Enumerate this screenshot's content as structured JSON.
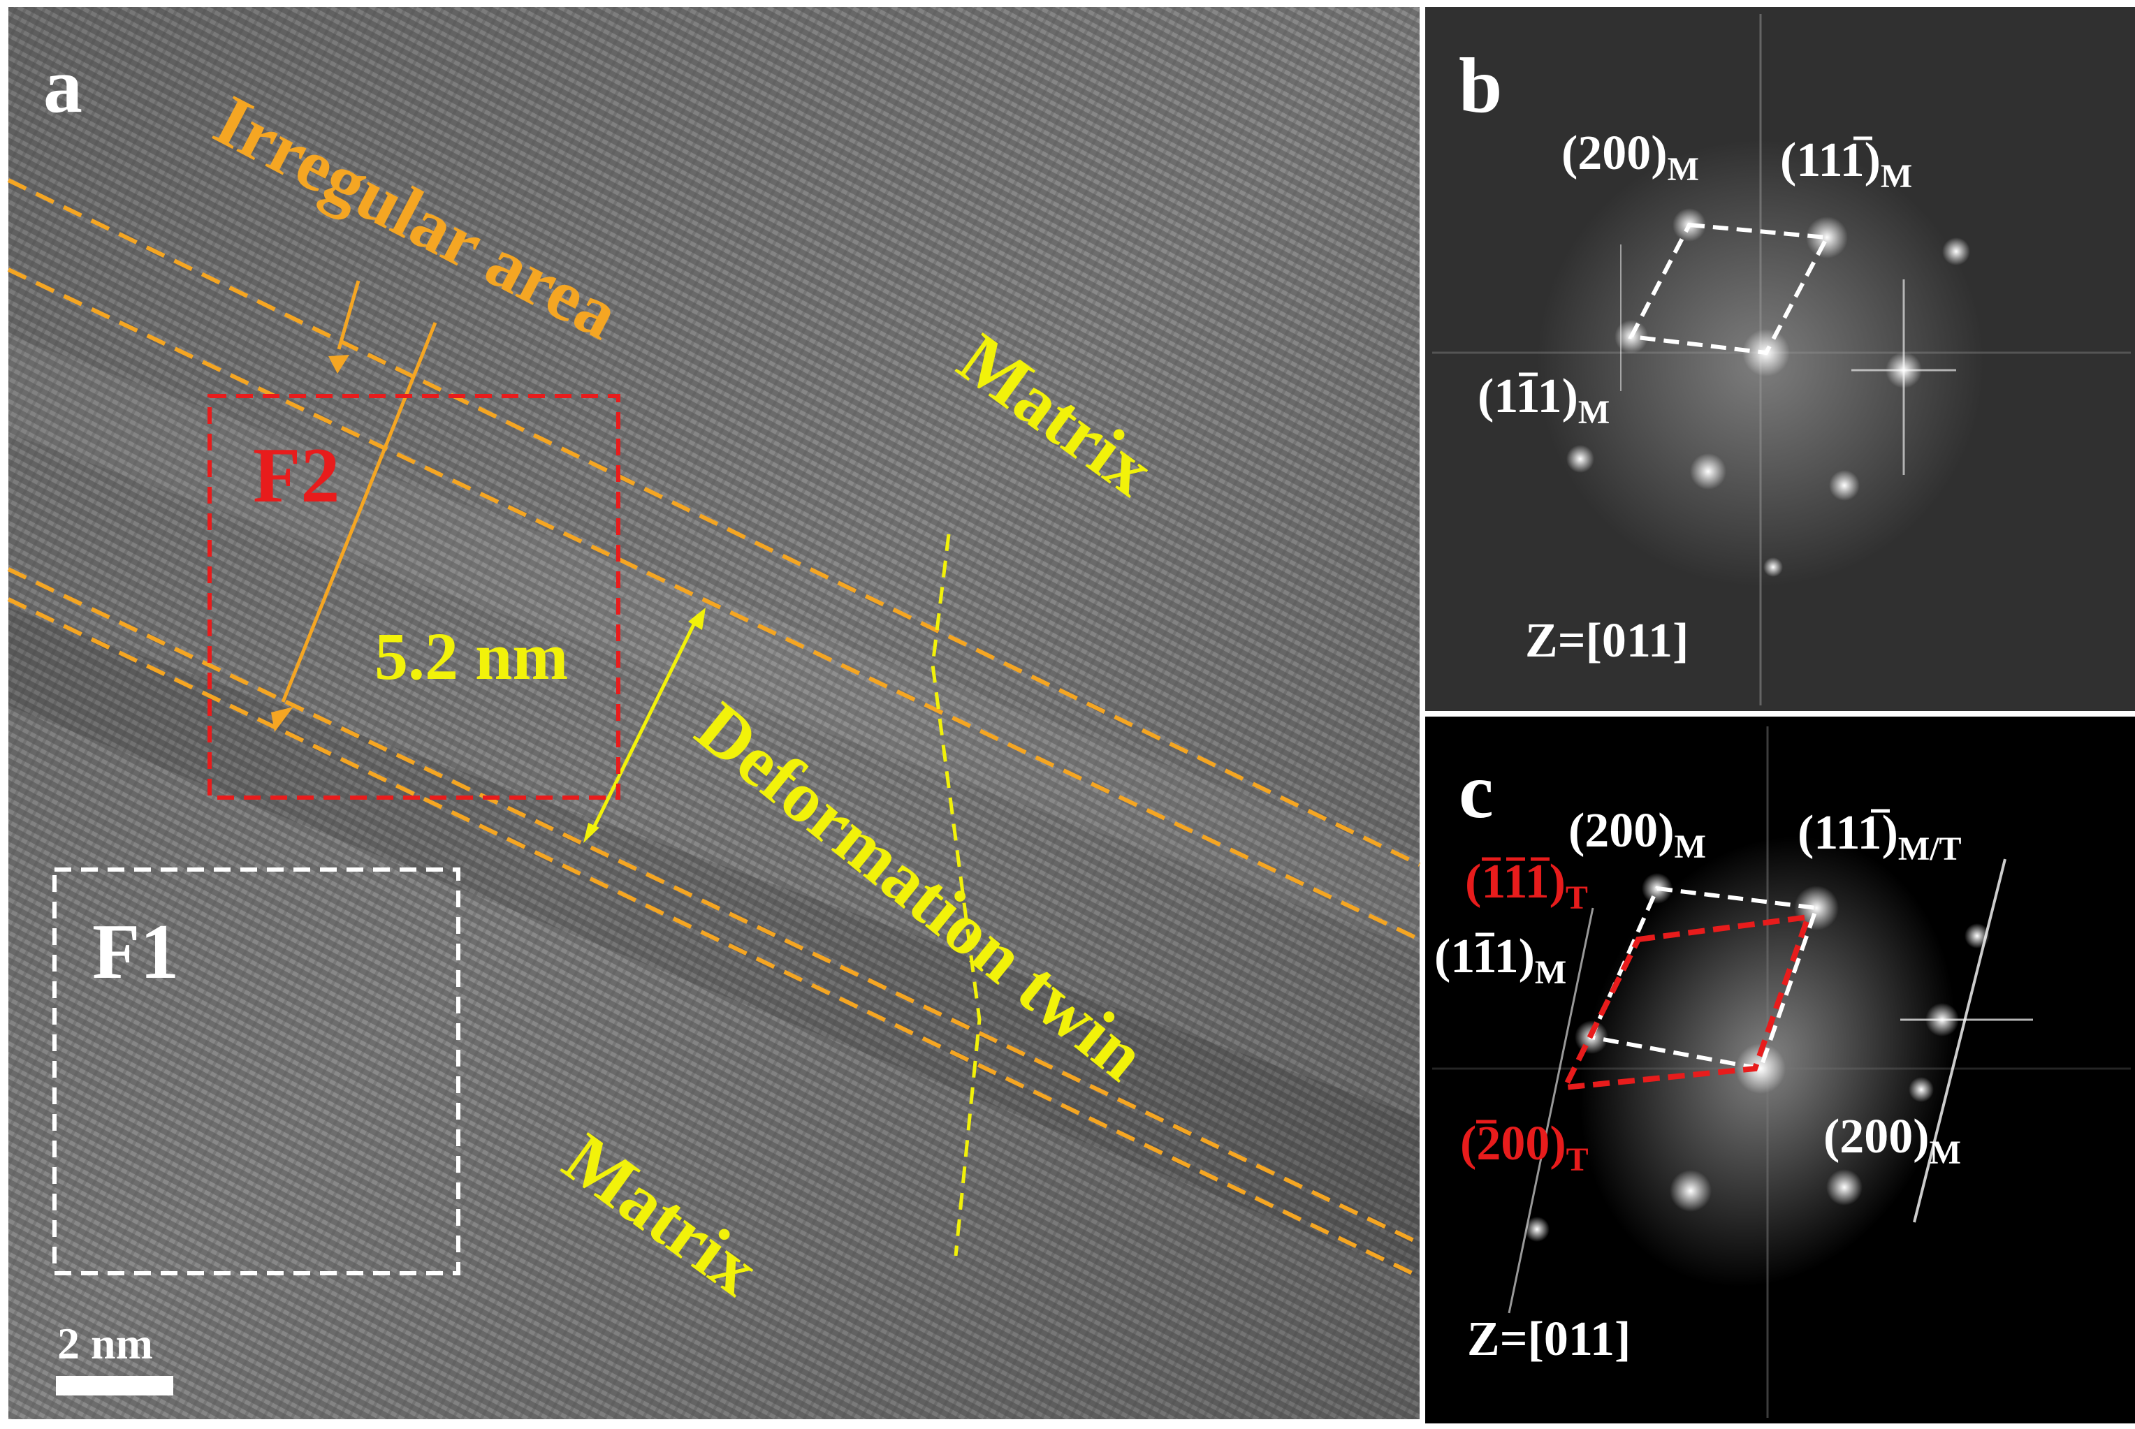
{
  "colors": {
    "orange": "#f5a623",
    "yellow": "#f2f20a",
    "red": "#e81c1c",
    "white": "#ffffff",
    "panel_a_bg": "#6f6f6f",
    "panel_b_bg": "#2a2a2a",
    "panel_c_bg": "#000000"
  },
  "panel_a": {
    "letter": "a",
    "irregular_area": "Irregular area",
    "matrix_top": "Matrix",
    "matrix_bottom": "Matrix",
    "deformation_twin": "Deformation twin",
    "width_label": "5.2 nm",
    "box_f1": "F1",
    "box_f2": "F2",
    "scale_bar": "2 nm"
  },
  "panel_b": {
    "letter": "b",
    "spot_200": {
      "main": "(200)",
      "sub": "M"
    },
    "spot_11bar1": {
      "main": "(11",
      "bar": "1",
      "close": ")",
      "sub": "M"
    },
    "spot_1bar11": {
      "pre": "(1",
      "bar": "1",
      "post": "1)",
      "sub": "M"
    },
    "zone_axis": "Z=[011]"
  },
  "panel_c": {
    "letter": "c",
    "spot_200_top": {
      "main": "(200)",
      "sub": "M"
    },
    "spot_11bar1": {
      "main": "(11",
      "bar": "1",
      "close": ")",
      "sub": "M/T"
    },
    "spot_bar1bar11bar_T": {
      "pre": "(",
      "b1": "1",
      "b2": "1",
      "b3": "1",
      "close": ")",
      "sub": "T"
    },
    "spot_1bar11": {
      "pre": "(1",
      "bar": "1",
      "post": "1)",
      "sub": "M"
    },
    "spot_bar200_T": {
      "pre": "(",
      "bar": "2",
      "post": "00)",
      "sub": "T"
    },
    "spot_200_bottom": {
      "main": "(200)",
      "sub": "M"
    },
    "zone_axis": "Z=[011]"
  }
}
